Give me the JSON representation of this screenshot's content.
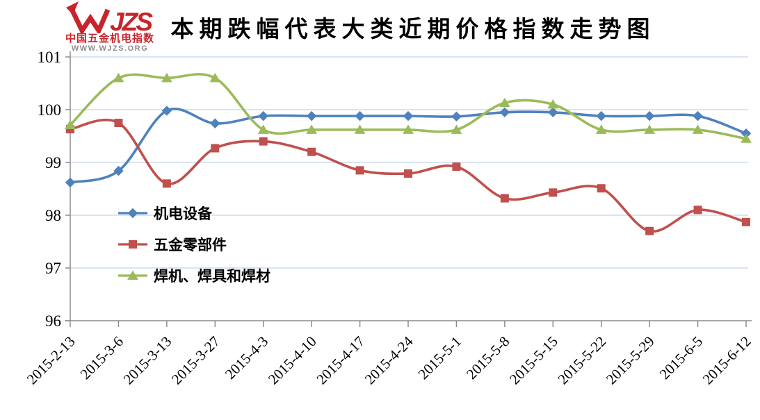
{
  "title": "本期跌幅代表大类近期价格指数走势图",
  "logo": {
    "brand": "WJZS",
    "subtitle": "中国五金机电指数",
    "url": "WWW.WJZS.ORG",
    "color": "#c9242b",
    "url_color": "#8c8c8c"
  },
  "chart_data": {
    "type": "line",
    "categories": [
      "2015-2-13",
      "2015-3-6",
      "2015-3-13",
      "2015-3-27",
      "2015-4-3",
      "2015-4-10",
      "2015-4-17",
      "2015-4-24",
      "2015-5-1",
      "2015-5-8",
      "2015-5-15",
      "2015-5-22",
      "2015-5-29",
      "2015-6-5",
      "2015-6-12"
    ],
    "series": [
      {
        "name": "机电设备",
        "marker": "diamond",
        "color": "#4f81bd",
        "values": [
          98.62,
          98.84,
          99.98,
          99.74,
          99.88,
          99.88,
          99.88,
          99.88,
          99.87,
          99.95,
          99.95,
          99.88,
          99.88,
          99.88,
          99.55
        ]
      },
      {
        "name": "五金零部件",
        "marker": "square",
        "color": "#c0504d",
        "values": [
          99.63,
          99.75,
          98.6,
          99.27,
          99.4,
          99.2,
          98.85,
          98.79,
          98.92,
          98.32,
          98.43,
          98.51,
          97.7,
          98.1,
          97.87
        ]
      },
      {
        "name": "焊机、焊具和焊材",
        "marker": "triangle",
        "color": "#9bbb59",
        "values": [
          99.71,
          100.6,
          100.6,
          100.6,
          99.62,
          99.62,
          99.62,
          99.62,
          99.62,
          100.13,
          100.1,
          99.62,
          99.62,
          99.62,
          99.45
        ]
      }
    ],
    "ylim": [
      96,
      101
    ],
    "yticks": [
      96,
      97,
      98,
      99,
      100,
      101
    ],
    "grid": true,
    "legend_position": "inside-left",
    "gridline_color": "#c3d4ea",
    "axis_color": "#8c8c8c"
  }
}
